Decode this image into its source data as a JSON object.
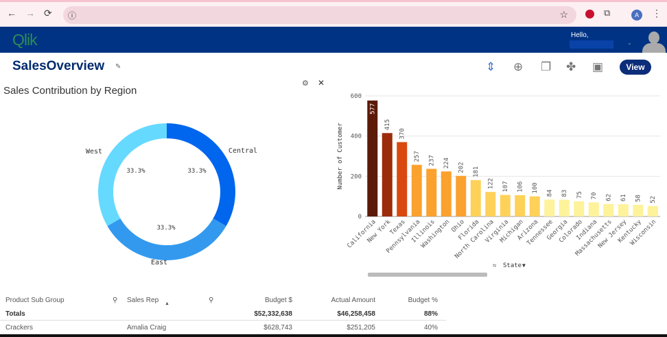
{
  "browser": {
    "back": "←",
    "forward": "→",
    "reload": "⟳",
    "info": "ⓘ",
    "star": "☆",
    "profile": "A",
    "menu": "⋮"
  },
  "header": {
    "logo": "Qlik",
    "greeting": "Hello,"
  },
  "toolbar": {
    "title": "SalesOverview",
    "view_label": "View"
  },
  "donut": {
    "title": "Sales Contribution by Region",
    "slices": [
      {
        "label": "Central",
        "pct": "33.3%",
        "value": 33.3,
        "color": "#0066ee"
      },
      {
        "label": "East",
        "pct": "33.3%",
        "value": 33.3,
        "color": "#3399ee"
      },
      {
        "label": "West",
        "pct": "33.3%",
        "value": 33.3,
        "color": "#66d9ff"
      }
    ]
  },
  "chart_data": {
    "type": "bar",
    "xlabel": "State",
    "ylabel": "Number of Customer",
    "ylim": [
      0,
      600
    ],
    "yticks": [
      0,
      200,
      400,
      600
    ],
    "grid": true,
    "categories": [
      "California",
      "New York",
      "Texas",
      "Pennsylvania",
      "Illinois",
      "Washington",
      "Ohio",
      "Florida",
      "North Carolina",
      "Virginia",
      "Michigan",
      "Arizona",
      "Tennessee",
      "Georgia",
      "Colorado",
      "Indiana",
      "Massachusetts",
      "New Jersey",
      "Kentucky",
      "Wisconsin"
    ],
    "values": [
      577,
      415,
      370,
      257,
      237,
      224,
      202,
      181,
      122,
      107,
      106,
      100,
      84,
      83,
      75,
      70,
      62,
      61,
      58,
      52
    ],
    "colors": [
      "#5c1a08",
      "#9c2b0b",
      "#d9490f",
      "#fba12e",
      "#fba12e",
      "#fba12e",
      "#fba12e",
      "#fed159",
      "#fed159",
      "#fed159",
      "#fed159",
      "#fed159",
      "#fef29a",
      "#fef29a",
      "#fef29a",
      "#fef29a",
      "#fef29a",
      "#fef29a",
      "#fef29a",
      "#fef29a"
    ]
  },
  "table": {
    "headers": [
      "Product Sub Group",
      "Sales Rep",
      "Budget $",
      "Actual Amount",
      "Budget %"
    ],
    "totals": {
      "label": "Totals",
      "budget": "$52,332,638",
      "actual": "$46,258,458",
      "pct": "88%"
    },
    "rows": [
      {
        "group": "Crackers",
        "rep": "Amalia Craig",
        "budget": "$628,743",
        "actual": "$251,205",
        "pct": "40%"
      }
    ]
  }
}
